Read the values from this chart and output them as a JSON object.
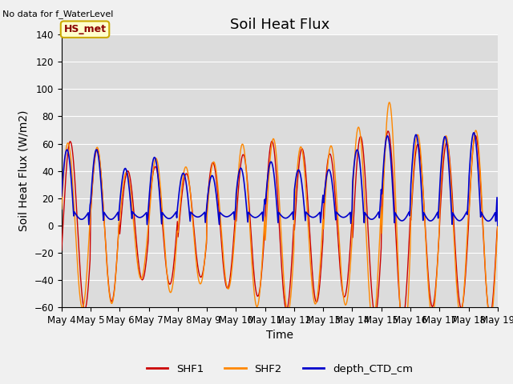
{
  "title": "Soil Heat Flux",
  "xlabel": "Time",
  "ylabel": "Soil Heat Flux (W/m2)",
  "top_left_text": "No data for f_WaterLevel",
  "box_label": "HS_met",
  "ylim": [
    -60,
    140
  ],
  "shf1_color": "#cc0000",
  "shf2_color": "#ff8800",
  "ctd_color": "#0000cc",
  "bg_color": "#dcdcdc",
  "fig_bg_color": "#f0f0f0",
  "legend_items": [
    "SHF1",
    "SHF2",
    "depth_CTD_cm"
  ],
  "x_tick_labels": [
    "May 4",
    "May 5",
    "May 6",
    "May 7",
    "May 8",
    "May 9",
    "May 10",
    "May 11",
    "May 12",
    "May 13",
    "May 14",
    "May 15",
    "May 16",
    "May 17",
    "May 18",
    "May 19"
  ],
  "yticks": [
    -60,
    -40,
    -20,
    0,
    20,
    40,
    60,
    80,
    100,
    120,
    140
  ],
  "title_fontsize": 13,
  "axis_label_fontsize": 10,
  "tick_fontsize": 8.5,
  "n_days": 15,
  "pts_per_day": 48
}
